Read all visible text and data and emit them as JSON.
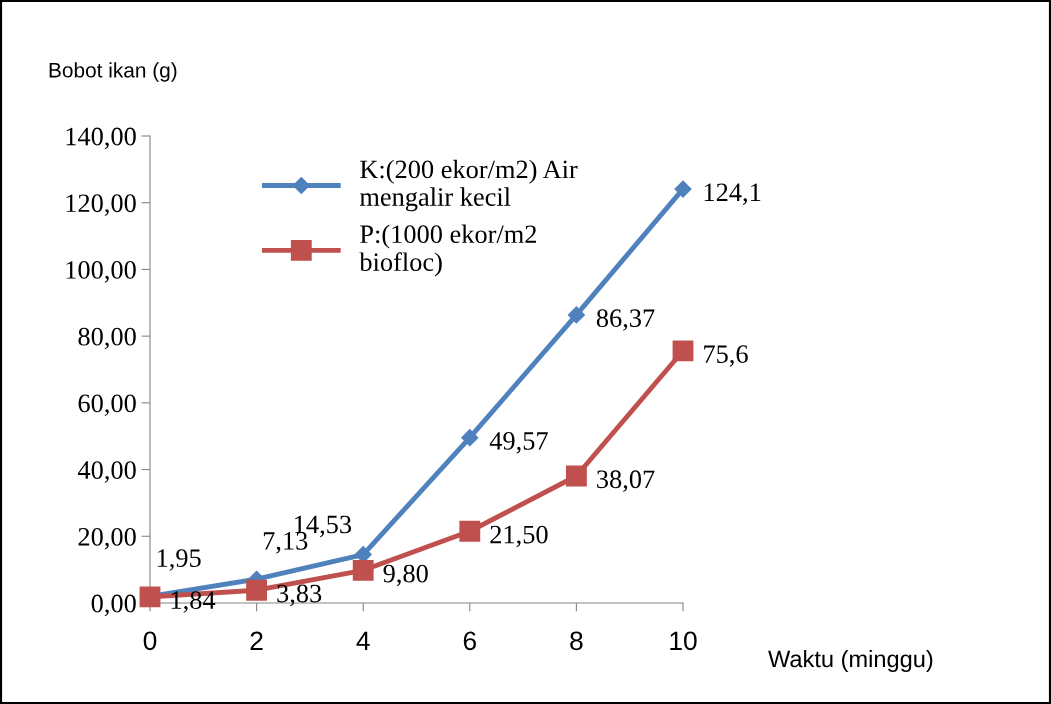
{
  "chart_data": {
    "type": "line",
    "xlabel": "Waktu (minggu)",
    "ylabel": "Bobot ikan (g)",
    "x": [
      0,
      2,
      4,
      6,
      8,
      10
    ],
    "series": [
      {
        "name": "K:(200 ekor/m2) Air mengalir kecil",
        "color": "#4f81bd",
        "marker": "diamond",
        "values": [
          1.95,
          7.13,
          14.53,
          49.57,
          86.37,
          124.1
        ],
        "value_labels": [
          "1,95",
          "7,13",
          "14,53",
          "49,57",
          "86,37",
          "124,1"
        ]
      },
      {
        "name": "P:(1000 ekor/m2 biofloc)",
        "color": "#c0504d",
        "marker": "square",
        "values": [
          1.84,
          3.83,
          9.8,
          21.5,
          38.07,
          75.6
        ],
        "value_labels": [
          "1,84",
          "3,83",
          "9,80",
          "21,50",
          "38,07",
          "75,6"
        ]
      }
    ],
    "xlim": [
      0,
      10
    ],
    "xticks": [
      0,
      2,
      4,
      6,
      8,
      10
    ],
    "ylim": [
      0,
      140
    ],
    "yticks": [
      {
        "value": 0,
        "label": "0,00"
      },
      {
        "value": 20,
        "label": "20,00"
      },
      {
        "value": 40,
        "label": "40,00"
      },
      {
        "value": 60,
        "label": "60,00"
      },
      {
        "value": 80,
        "label": "80,00"
      },
      {
        "value": 100,
        "label": "100,00"
      },
      {
        "value": 120,
        "label": "120,00"
      },
      {
        "value": 140,
        "label": "140,00"
      }
    ],
    "legend": "top left",
    "grid": false
  }
}
